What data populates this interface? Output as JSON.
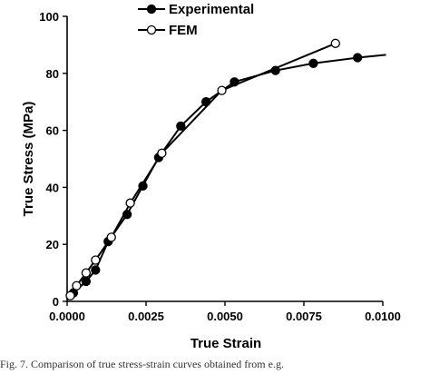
{
  "chart_data": {
    "type": "line",
    "xlabel": "True Strain",
    "ylabel": "True Stress (MPa)",
    "xlim": [
      0,
      0.01
    ],
    "ylim": [
      0,
      100
    ],
    "xticks": [
      "0.0000",
      "0.0025",
      "0.0050",
      "0.0075",
      "0.0100"
    ],
    "yticks": [
      "0",
      "20",
      "40",
      "60",
      "80",
      "100"
    ],
    "legend_position": "top-center",
    "series": [
      {
        "name": "Experimental",
        "marker": "filled-circle",
        "x": [
          0.0,
          0.0002,
          0.0006,
          0.0009,
          0.0013,
          0.0019,
          0.0024,
          0.0029,
          0.0036,
          0.0044,
          0.0053,
          0.0066,
          0.0078,
          0.0092,
          0.0101
        ],
        "y": [
          0.5,
          3.0,
          7.0,
          11.0,
          21.0,
          30.5,
          40.5,
          50.5,
          61.5,
          70.0,
          77.0,
          81.0,
          83.5,
          85.5,
          86.5
        ],
        "marker_mask": [
          false,
          true,
          true,
          true,
          true,
          true,
          true,
          true,
          true,
          true,
          true,
          true,
          true,
          true,
          false
        ]
      },
      {
        "name": "FEM",
        "marker": "open-circle",
        "x": [
          0.0001,
          0.0003,
          0.0006,
          0.0009,
          0.0014,
          0.002,
          0.003,
          0.0049,
          0.0085
        ],
        "y": [
          2.0,
          5.5,
          10.0,
          14.5,
          22.5,
          34.5,
          52.0,
          74.0,
          90.5
        ],
        "marker_mask": [
          true,
          true,
          true,
          true,
          true,
          true,
          true,
          true,
          true
        ]
      }
    ]
  },
  "caption": "Fig. 7. Comparison of true stress-strain curves obtained from e.g."
}
